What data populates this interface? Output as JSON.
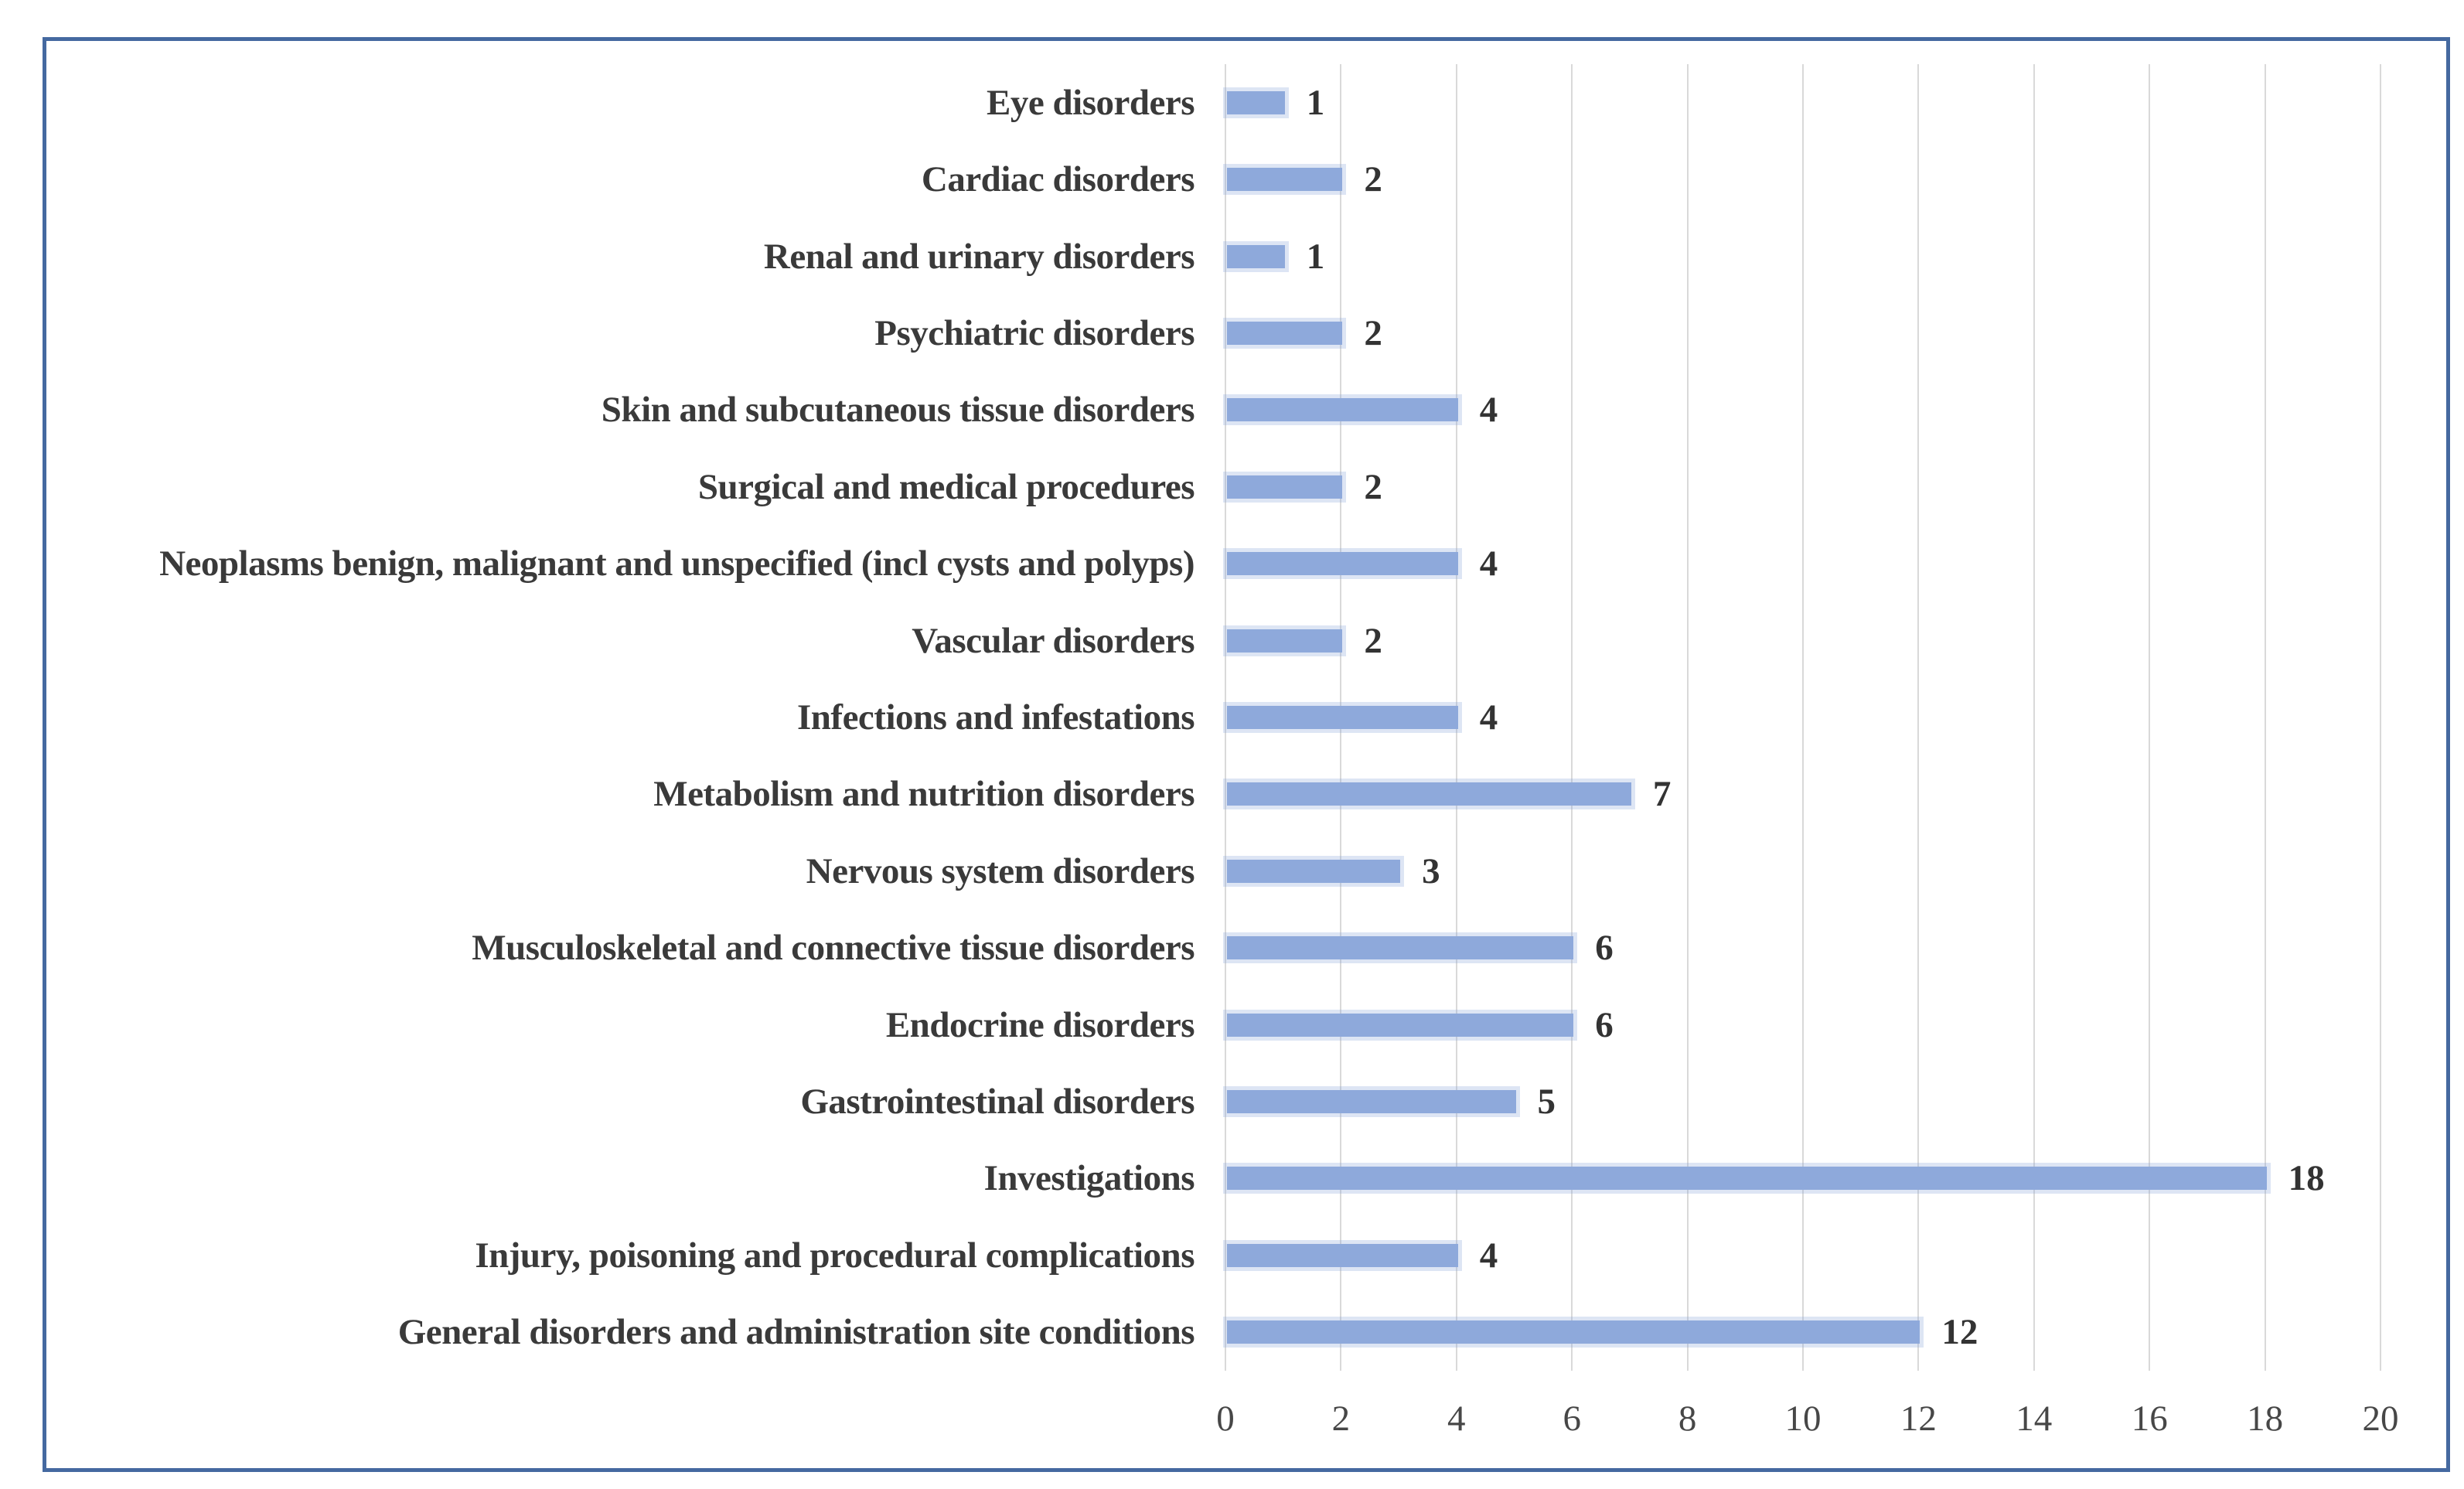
{
  "figure": {
    "border_color": "#4569A0",
    "background_color": "#FFFFFF"
  },
  "chart_data": {
    "type": "bar",
    "orientation": "horizontal",
    "title": "",
    "xlabel": "",
    "ylabel": "",
    "legend": "none",
    "grid": "vertical-only",
    "gridline_color": "#D9D9D9",
    "bar_color": "#8EA9DB",
    "data_labels_shown": true,
    "xlim": [
      0,
      20
    ],
    "x_ticks": [
      0,
      2,
      4,
      6,
      8,
      10,
      12,
      14,
      16,
      18,
      20
    ],
    "categories": [
      "Eye disorders",
      "Cardiac disorders",
      "Renal and urinary disorders",
      "Psychiatric disorders",
      "Skin and subcutaneous tissue disorders",
      "Surgical and medical procedures",
      "Neoplasms benign, malignant and unspecified (incl cysts and polyps)",
      "Vascular disorders",
      "Infections and infestations",
      "Metabolism and nutrition disorders",
      "Nervous system disorders",
      "Musculoskeletal and connective tissue disorders",
      "Endocrine disorders",
      "Gastrointestinal disorders",
      "Investigations",
      "Injury, poisoning and procedural complications",
      "General disorders and administration site conditions"
    ],
    "values": [
      1,
      2,
      1,
      2,
      4,
      2,
      4,
      2,
      4,
      7,
      3,
      6,
      6,
      5,
      18,
      4,
      12
    ]
  }
}
